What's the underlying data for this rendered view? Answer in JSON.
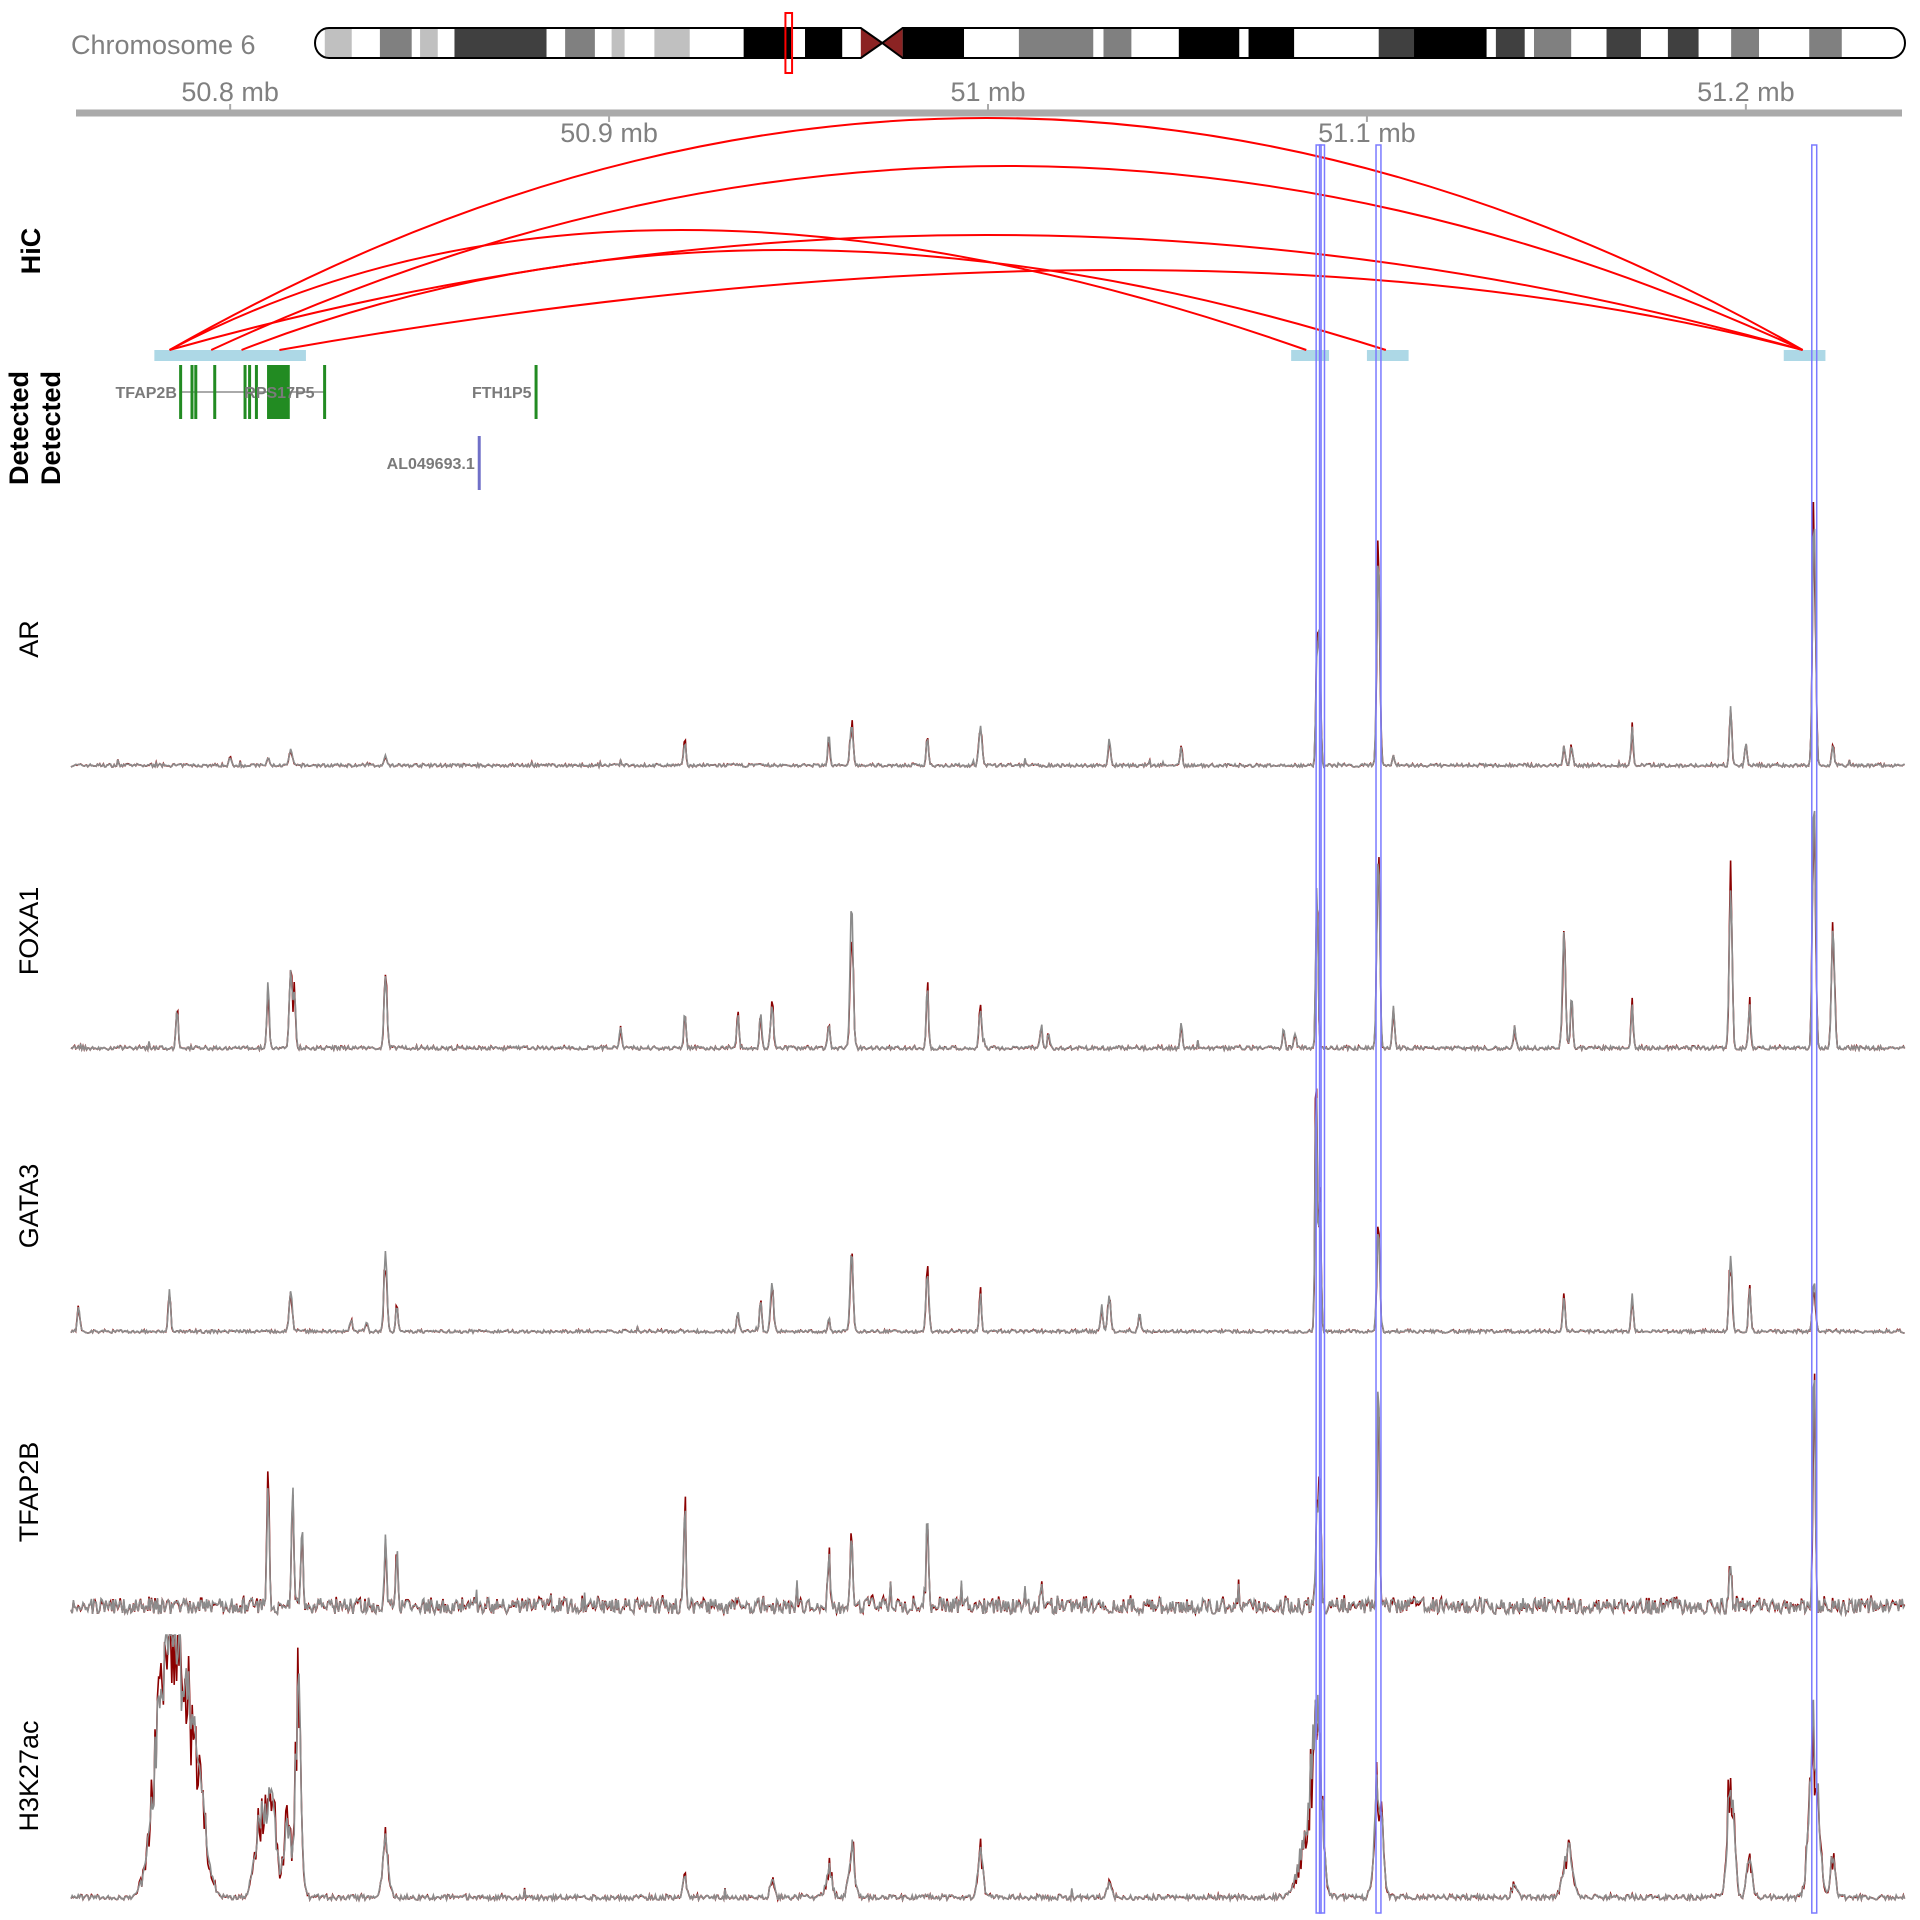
{
  "chart_data": {
    "type": "line",
    "title": "",
    "xlim_mb": [
      50.758,
      51.242
    ],
    "ideogram": {
      "label": "Chromosome 6",
      "length_mb": 171,
      "highlight_mb": [
        50.7,
        51.2
      ],
      "bands": [
        [
          0,
          1.05,
          "gneg"
        ],
        [
          1.05,
          3.95,
          "gpos25"
        ],
        [
          3.95,
          6.98,
          "gneg"
        ],
        [
          6.98,
          10.4,
          "gpos50"
        ],
        [
          10.4,
          11.3,
          "gneg"
        ],
        [
          11.3,
          13.2,
          "gpos25"
        ],
        [
          13.2,
          15.0,
          "gneg"
        ],
        [
          15.0,
          24.9,
          "gpos75"
        ],
        [
          24.9,
          26.9,
          "gneg"
        ],
        [
          26.9,
          30.1,
          "gpos50"
        ],
        [
          30.1,
          31.9,
          "gneg"
        ],
        [
          31.9,
          33.3,
          "gpos25"
        ],
        [
          33.3,
          36.5,
          "gneg"
        ],
        [
          36.5,
          40.3,
          "gpos25"
        ],
        [
          40.3,
          46.1,
          "gneg"
        ],
        [
          46.1,
          51.2,
          "gpos100"
        ],
        [
          51.2,
          52.7,
          "gneg"
        ],
        [
          52.7,
          56.7,
          "gpos100"
        ],
        [
          56.7,
          58.7,
          "gneg"
        ],
        [
          58.7,
          61.0,
          "acen"
        ],
        [
          61.0,
          63.2,
          "acen"
        ],
        [
          63.2,
          69.8,
          "gpos100"
        ],
        [
          69.8,
          75.7,
          "gneg"
        ],
        [
          75.7,
          83.7,
          "gpos50"
        ],
        [
          83.7,
          84.8,
          "gneg"
        ],
        [
          84.8,
          87.8,
          "gpos50"
        ],
        [
          87.8,
          92.9,
          "gneg"
        ],
        [
          92.9,
          99.4,
          "gpos100"
        ],
        [
          99.4,
          100.4,
          "gneg"
        ],
        [
          100.4,
          105.3,
          "gpos100"
        ],
        [
          105.3,
          114.4,
          "gneg"
        ],
        [
          114.4,
          118.2,
          "gpos75"
        ],
        [
          118.2,
          126.0,
          "gpos100"
        ],
        [
          126.0,
          127.0,
          "gneg"
        ],
        [
          127.0,
          130.1,
          "gpos75"
        ],
        [
          130.1,
          131.1,
          "gneg"
        ],
        [
          131.1,
          135.1,
          "gpos50"
        ],
        [
          135.1,
          138.9,
          "gneg"
        ],
        [
          138.9,
          142.6,
          "gpos75"
        ],
        [
          142.6,
          145.5,
          "gneg"
        ],
        [
          145.5,
          148.8,
          "gpos75"
        ],
        [
          148.8,
          152.3,
          "gneg"
        ],
        [
          152.3,
          155.3,
          "gpos50"
        ],
        [
          155.3,
          160.7,
          "gneg"
        ],
        [
          160.7,
          164.2,
          "gpos50"
        ],
        [
          164.2,
          171,
          "gneg"
        ]
      ],
      "stain_colors": {
        "gneg": "#ffffff",
        "gpos25": "#c0c0c0",
        "gpos50": "#808080",
        "gpos75": "#404040",
        "gpos100": "#000000",
        "acen": "#8b2323"
      }
    },
    "x_axis": {
      "ticks": [
        {
          "mb": 50.8,
          "label": "50.8 mb"
        },
        {
          "mb": 50.9,
          "label": "50.9 mb"
        },
        {
          "mb": 51.0,
          "label": "51 mb"
        },
        {
          "mb": 51.1,
          "label": "51.1 mb"
        },
        {
          "mb": 51.2,
          "label": "51.2 mb"
        }
      ]
    },
    "hic": {
      "label": "HiC",
      "color": "#ff0000",
      "anchor_color": "#add8e6",
      "anchors": [
        [
          50.78,
          50.82
        ],
        [
          51.08,
          51.09
        ],
        [
          51.1,
          51.111
        ],
        [
          51.21,
          51.221
        ]
      ],
      "arcs": [
        {
          "from": 50.784,
          "to": 51.215
        },
        {
          "from": 50.795,
          "to": 51.215
        },
        {
          "from": 50.784,
          "to": 51.084
        },
        {
          "from": 50.784,
          "to": 51.215
        },
        {
          "from": 50.803,
          "to": 51.105
        },
        {
          "from": 50.813,
          "to": 51.215
        }
      ]
    },
    "genes": {
      "track_labels": [
        "Detected",
        "Detected"
      ],
      "items": [
        {
          "name": "TFAP2B",
          "start": 50.787,
          "end": 50.825,
          "color": "#228b22",
          "row": 0,
          "label_pos": "left",
          "exons": [
            [
              50.7868,
              50.7872
            ],
            [
              50.7898,
              50.7902
            ],
            [
              50.7908,
              50.7912
            ],
            [
              50.7958,
              50.7962
            ],
            [
              50.8038,
              50.8042
            ],
            [
              50.805,
              50.8054
            ],
            [
              50.8068,
              50.8072
            ],
            [
              50.81,
              50.816
            ],
            [
              50.8248,
              50.8252
            ]
          ]
        },
        {
          "name": "RPS17P5",
          "start": 50.81,
          "end": 50.816,
          "color": "#228b22",
          "row": 0,
          "label_pos": "center",
          "exons": []
        },
        {
          "name": "FTH1P5",
          "start": 50.8806,
          "end": 50.8812,
          "color": "#228b22",
          "row": 0,
          "label_pos": "left",
          "exons": [
            [
              50.8806,
              50.8812
            ]
          ]
        },
        {
          "name": "AL049693.1",
          "start": 50.8656,
          "end": 50.8662,
          "color": "#7070c8",
          "row": 1,
          "label_pos": "left",
          "exons": [
            [
              50.8656,
              50.8662
            ]
          ]
        }
      ]
    },
    "highlights": {
      "color": "#7b7bff",
      "regions_mb": [
        [
          51.0866,
          51.0879
        ],
        [
          51.0875,
          51.0888
        ],
        [
          51.1024,
          51.1037
        ],
        [
          51.2174,
          51.2187
        ]
      ]
    },
    "series_colors": {
      "signal_a": "#8c8c8c",
      "signal_b": "#8b0000"
    },
    "tracks": [
      {
        "name": "AR",
        "noise": 0.012,
        "peaks": [
          [
            51.218,
            0.95,
            0.0004
          ],
          [
            51.103,
            0.79,
            0.0004
          ],
          [
            51.0875,
            0.5,
            0.0003
          ],
          [
            51.0868,
            0.41,
            0.0003
          ],
          [
            51.196,
            0.22,
            0.0003
          ],
          [
            51.17,
            0.14,
            0.0003
          ],
          [
            50.998,
            0.15,
            0.0004
          ],
          [
            50.964,
            0.15,
            0.0004
          ],
          [
            50.958,
            0.12,
            0.0003
          ],
          [
            50.984,
            0.11,
            0.0003
          ],
          [
            50.92,
            0.09,
            0.0003
          ],
          [
            51.032,
            0.1,
            0.0003
          ],
          [
            51.051,
            0.07,
            0.0003
          ],
          [
            51.152,
            0.07,
            0.0003
          ],
          [
            51.154,
            0.08,
            0.0003
          ],
          [
            51.2,
            0.08,
            0.0003
          ],
          [
            51.223,
            0.08,
            0.0003
          ],
          [
            50.816,
            0.06,
            0.0004
          ],
          [
            50.81,
            0.03,
            0.0003
          ],
          [
            50.841,
            0.04,
            0.0003
          ],
          [
            50.8,
            0.03,
            0.0003
          ],
          [
            51.107,
            0.04,
            0.0003
          ]
        ]
      },
      {
        "name": "FOXA1",
        "noise": 0.015,
        "peaks": [
          [
            51.218,
            0.96,
            0.0004
          ],
          [
            51.103,
            0.73,
            0.0004
          ],
          [
            51.0868,
            0.63,
            0.0003
          ],
          [
            50.964,
            0.55,
            0.0004
          ],
          [
            51.196,
            0.6,
            0.0004
          ],
          [
            51.223,
            0.46,
            0.0004
          ],
          [
            51.152,
            0.44,
            0.0004
          ],
          [
            50.984,
            0.24,
            0.0003
          ],
          [
            50.998,
            0.14,
            0.0004
          ],
          [
            50.841,
            0.27,
            0.0004
          ],
          [
            50.816,
            0.29,
            0.0004
          ],
          [
            50.817,
            0.2,
            0.0003
          ],
          [
            50.81,
            0.25,
            0.0003
          ],
          [
            50.786,
            0.15,
            0.0003
          ],
          [
            50.943,
            0.16,
            0.0004
          ],
          [
            50.934,
            0.13,
            0.0003
          ],
          [
            50.94,
            0.13,
            0.0003
          ],
          [
            50.92,
            0.14,
            0.0003
          ],
          [
            51.17,
            0.16,
            0.0003
          ],
          [
            51.201,
            0.16,
            0.0003
          ],
          [
            51.107,
            0.16,
            0.0003
          ],
          [
            51.154,
            0.2,
            0.0003
          ],
          [
            51.051,
            0.09,
            0.0003
          ],
          [
            50.903,
            0.08,
            0.0003
          ],
          [
            51.139,
            0.08,
            0.0003
          ],
          [
            51.014,
            0.07,
            0.0003
          ],
          [
            51.016,
            0.06,
            0.0003
          ],
          [
            50.958,
            0.09,
            0.0003
          ],
          [
            51.078,
            0.07,
            0.0003
          ],
          [
            51.081,
            0.06,
            0.0003
          ]
        ]
      },
      {
        "name": "GATA3",
        "noise": 0.012,
        "peaks": [
          [
            51.0866,
            0.95,
            0.0003
          ],
          [
            51.0876,
            0.5,
            0.0003
          ],
          [
            51.103,
            0.39,
            0.0004
          ],
          [
            51.218,
            0.19,
            0.0004
          ],
          [
            50.964,
            0.3,
            0.0004
          ],
          [
            50.984,
            0.22,
            0.0004
          ],
          [
            50.943,
            0.19,
            0.0004
          ],
          [
            50.841,
            0.3,
            0.0004
          ],
          [
            51.196,
            0.29,
            0.0004
          ],
          [
            51.201,
            0.17,
            0.0003
          ],
          [
            50.998,
            0.14,
            0.0003
          ],
          [
            50.784,
            0.16,
            0.0003
          ],
          [
            50.816,
            0.15,
            0.0004
          ],
          [
            50.94,
            0.12,
            0.0003
          ],
          [
            50.934,
            0.08,
            0.0003
          ],
          [
            51.032,
            0.14,
            0.0004
          ],
          [
            51.03,
            0.1,
            0.0003
          ],
          [
            51.04,
            0.07,
            0.0003
          ],
          [
            51.152,
            0.13,
            0.0003
          ],
          [
            51.17,
            0.14,
            0.0003
          ],
          [
            50.76,
            0.1,
            0.0003
          ],
          [
            50.844,
            0.1,
            0.0003
          ],
          [
            50.958,
            0.05,
            0.0003
          ],
          [
            50.832,
            0.05,
            0.0003
          ],
          [
            50.836,
            0.04,
            0.0003
          ]
        ]
      },
      {
        "name": "TFAP2B",
        "noise": 0.06,
        "peaks": [
          [
            51.218,
            0.98,
            0.0003
          ],
          [
            51.103,
            0.88,
            0.0003
          ],
          [
            51.0876,
            0.5,
            0.0003
          ],
          [
            51.0868,
            0.35,
            0.0003
          ],
          [
            50.81,
            0.47,
            0.0003
          ],
          [
            50.8165,
            0.44,
            0.0003
          ],
          [
            50.819,
            0.28,
            0.0003
          ],
          [
            50.92,
            0.37,
            0.0003
          ],
          [
            50.984,
            0.36,
            0.0003
          ],
          [
            50.841,
            0.25,
            0.0003
          ],
          [
            50.844,
            0.2,
            0.0003
          ],
          [
            50.964,
            0.27,
            0.0003
          ],
          [
            50.958,
            0.19,
            0.0003
          ],
          [
            51.196,
            0.18,
            0.0003
          ],
          [
            51.014,
            0.07,
            0.0003
          ]
        ]
      },
      {
        "name": "H3K27ac",
        "noise": 0.02,
        "peaks": [
          [
            50.782,
            0.7,
            0.0025
          ],
          [
            50.785,
            0.85,
            0.002
          ],
          [
            50.789,
            0.6,
            0.002
          ],
          [
            50.792,
            0.35,
            0.002
          ],
          [
            50.808,
            0.35,
            0.0015
          ],
          [
            50.811,
            0.35,
            0.0012
          ],
          [
            50.818,
            0.8,
            0.0008
          ],
          [
            50.815,
            0.3,
            0.001
          ],
          [
            50.841,
            0.24,
            0.0008
          ],
          [
            51.0868,
            0.75,
            0.0012
          ],
          [
            51.084,
            0.25,
            0.002
          ],
          [
            51.103,
            0.5,
            0.001
          ],
          [
            51.218,
            0.7,
            0.0012
          ],
          [
            51.196,
            0.45,
            0.0009
          ],
          [
            51.201,
            0.2,
            0.0007
          ],
          [
            51.223,
            0.2,
            0.0006
          ],
          [
            51.153,
            0.2,
            0.0012
          ],
          [
            50.964,
            0.2,
            0.0008
          ],
          [
            50.958,
            0.12,
            0.0008
          ],
          [
            50.998,
            0.17,
            0.0007
          ],
          [
            50.92,
            0.1,
            0.0005
          ],
          [
            50.943,
            0.1,
            0.0005
          ],
          [
            51.032,
            0.07,
            0.0005
          ],
          [
            51.139,
            0.05,
            0.0007
          ]
        ]
      }
    ]
  }
}
